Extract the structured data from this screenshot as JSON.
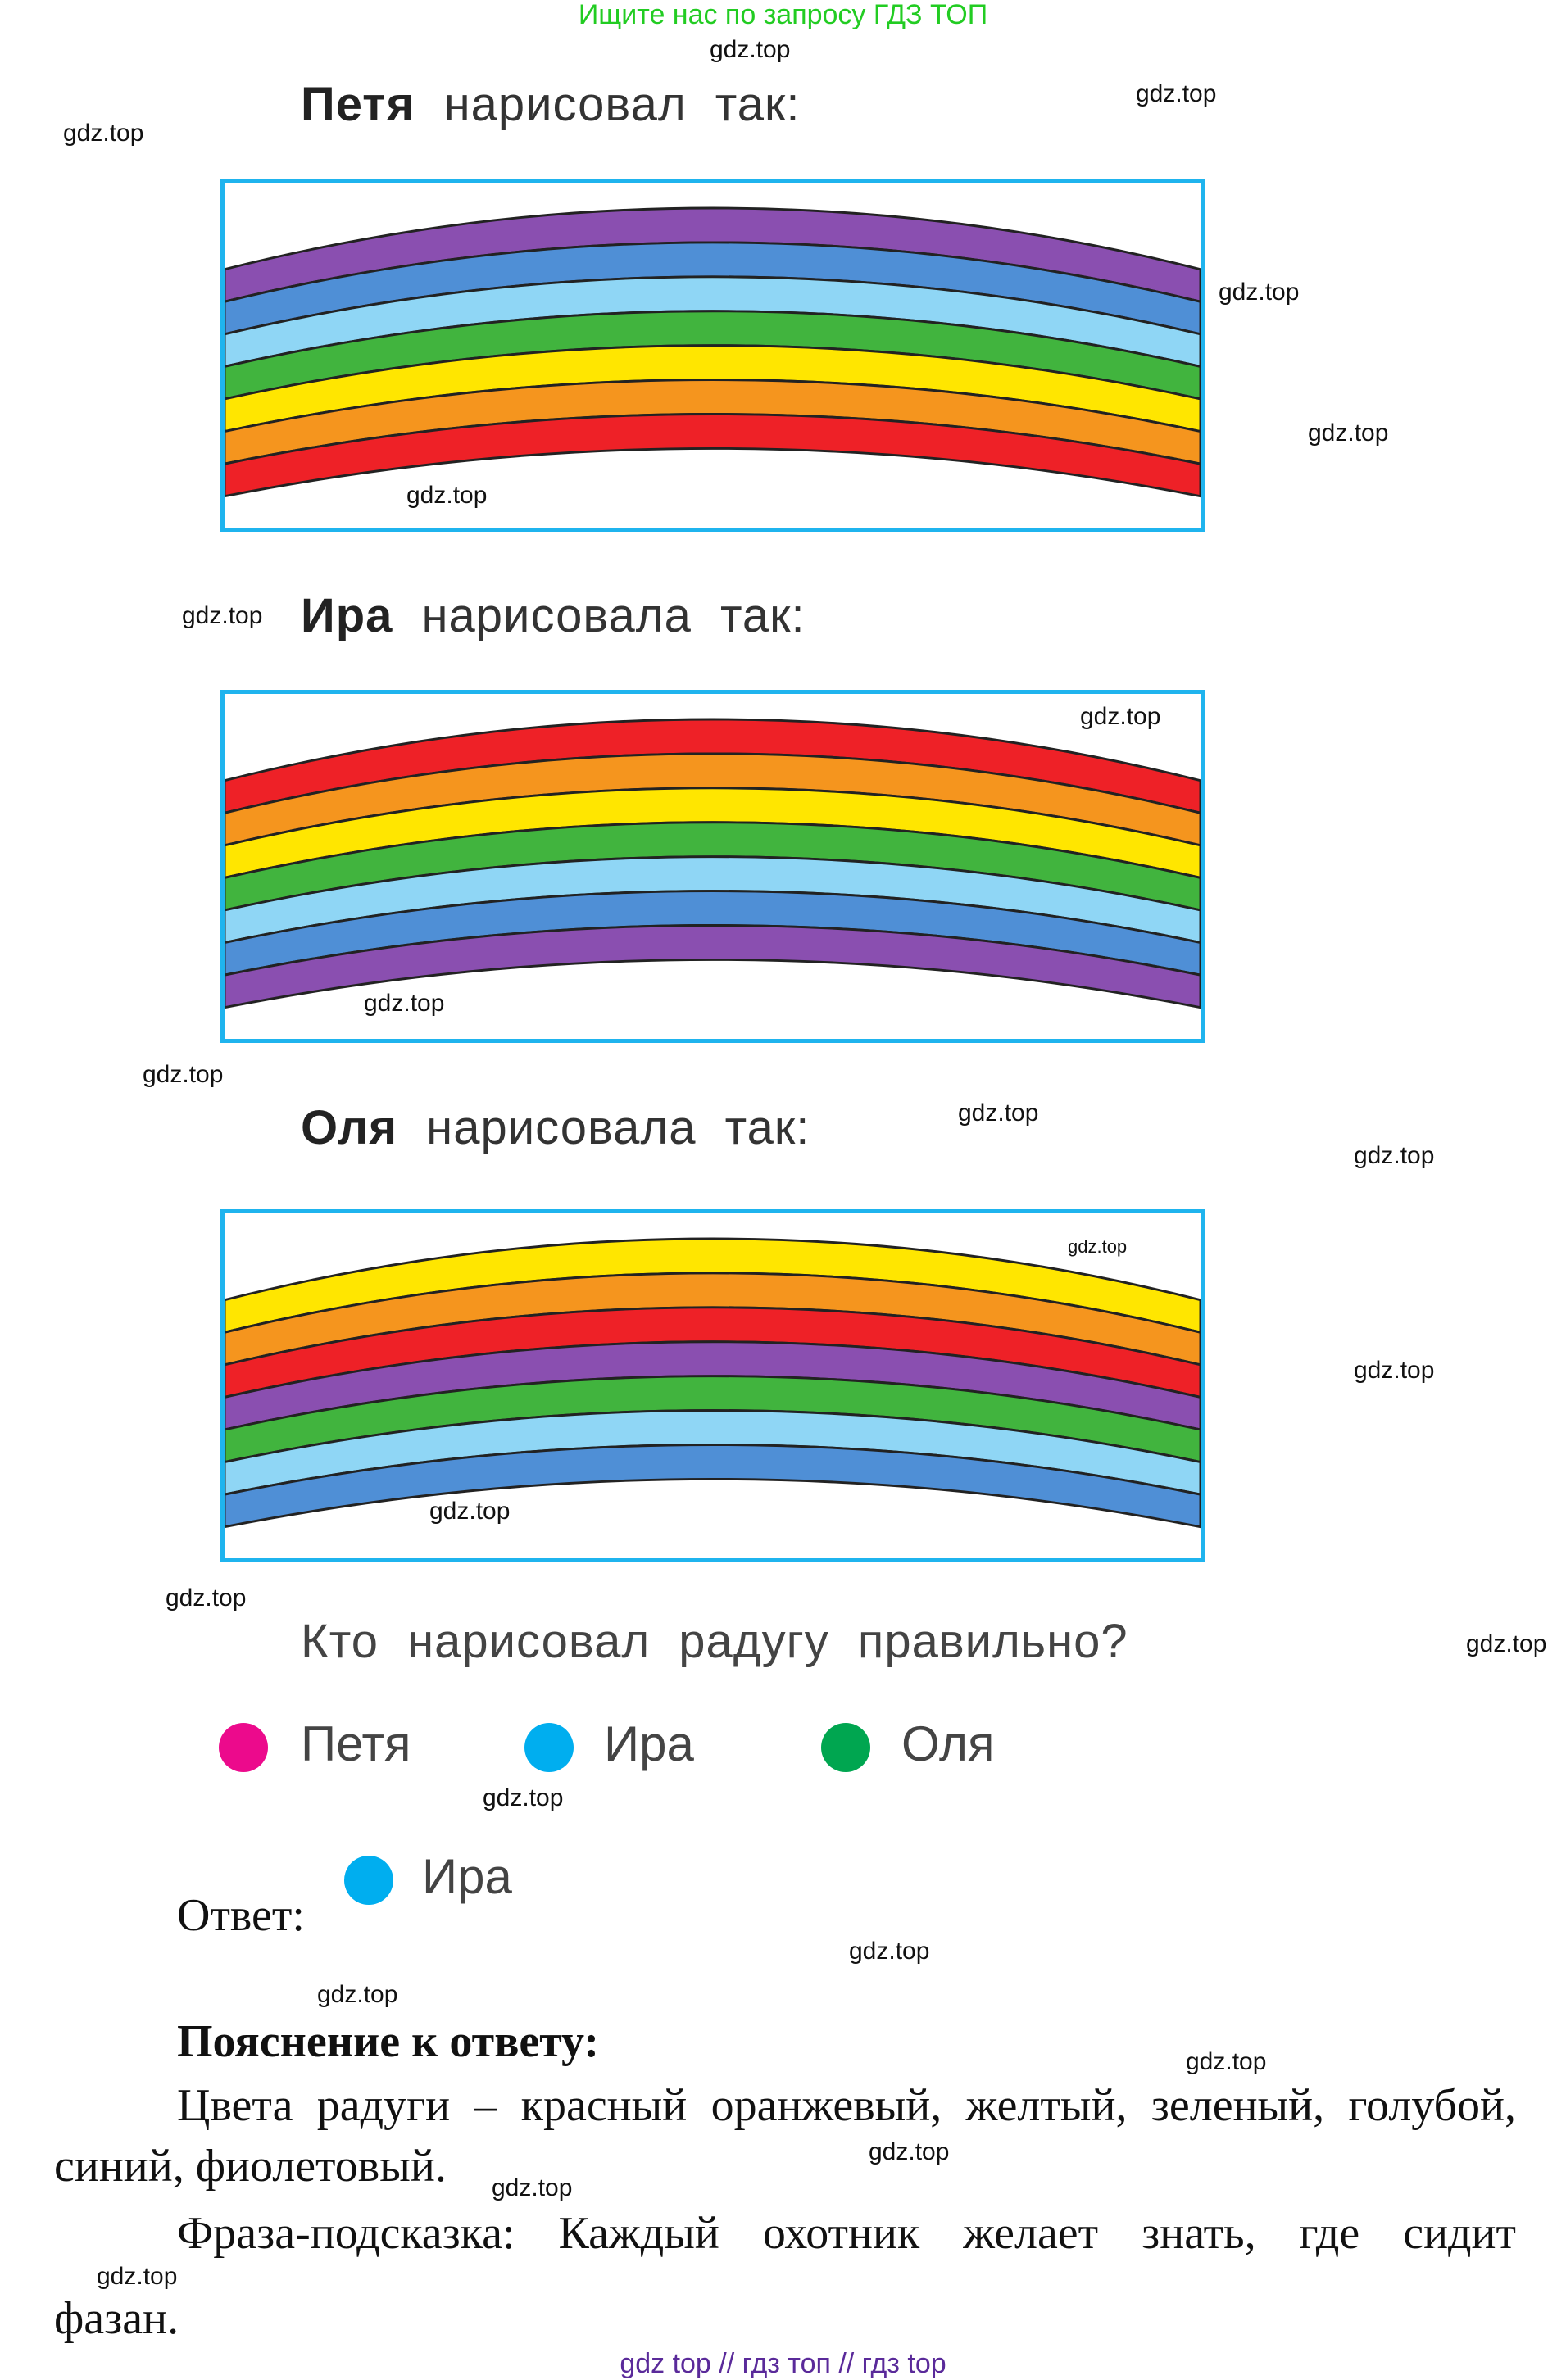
{
  "banner": "Ищите нас по запросу ГДЗ ТОП",
  "watermark": "gdz.top",
  "sections": [
    {
      "name": "Петя",
      "rest": "нарисовал так:",
      "bands": [
        "#8a4fb0",
        "#4f8fd6",
        "#8fd6f5",
        "#41b43e",
        "#ffe600",
        "#f5951e",
        "#ee2127"
      ]
    },
    {
      "name": "Ира",
      "rest": "нарисовала так:",
      "bands": [
        "#ee2127",
        "#f5951e",
        "#ffe600",
        "#41b43e",
        "#8fd6f5",
        "#4f8fd6",
        "#8a4fb0"
      ]
    },
    {
      "name": "Оля",
      "rest": "нарисовала так:",
      "bands": [
        "#ffe600",
        "#f5951e",
        "#ee2127",
        "#8a4fb0",
        "#41b43e",
        "#8fd6f5",
        "#4f8fd6"
      ]
    }
  ],
  "question": "Кто нарисовал радугу правильно?",
  "options": [
    {
      "label": "Петя",
      "color": "#ec0a8c"
    },
    {
      "label": "Ира",
      "color": "#00aeef"
    },
    {
      "label": "Оля",
      "color": "#00a650"
    }
  ],
  "answer": {
    "label": "Ответ:",
    "choice": "Ира",
    "color": "#00aeef"
  },
  "explanation": {
    "title": "Пояснение к ответу:",
    "para1_line1": "Цвета радуги – красный оранжевый, желтый, зеленый, голубой,",
    "para1_line2": "синий, фиолетовый.",
    "para2_line1": "Фраза-подсказка: Каждый охотник желает знать, где сидит",
    "para2_line2": "фазан."
  },
  "footer": "gdz top // гдз топ // гдз top"
}
